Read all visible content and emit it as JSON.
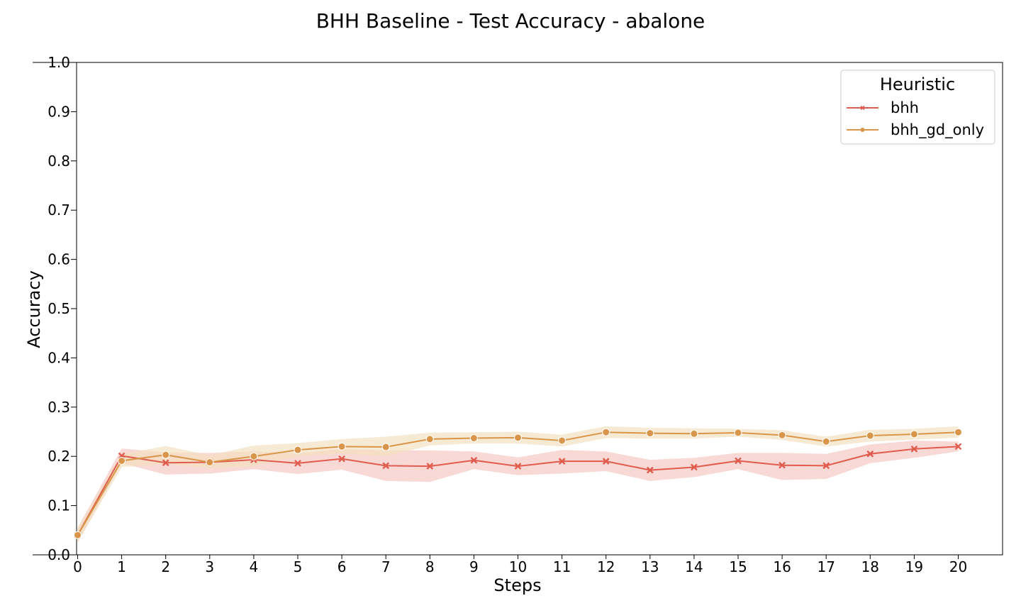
{
  "chart_data": {
    "type": "line",
    "title": "BHH Baseline - Test Accuracy - abalone",
    "xlabel": "Steps",
    "ylabel": "Accuracy",
    "xlim": [
      0,
      21
    ],
    "ylim": [
      0.0,
      1.0
    ],
    "x_ticks": [
      0,
      1,
      2,
      3,
      4,
      5,
      6,
      7,
      8,
      9,
      10,
      11,
      12,
      13,
      14,
      15,
      16,
      17,
      18,
      19,
      20
    ],
    "y_ticks": [
      "0.0",
      "0.1",
      "0.2",
      "0.3",
      "0.4",
      "0.5",
      "0.6",
      "0.7",
      "0.8",
      "0.9",
      "1.0"
    ],
    "grid": false,
    "legend": {
      "title": "Heuristic",
      "placement": "top-right"
    },
    "x": [
      0,
      1,
      2,
      3,
      4,
      5,
      6,
      7,
      8,
      9,
      10,
      11,
      12,
      13,
      14,
      15,
      16,
      17,
      18,
      19,
      20
    ],
    "series": [
      {
        "name": "bhh",
        "color": "#e05c4e",
        "band_color": "#f4c4c0",
        "marker": "x",
        "values": [
          0.04,
          0.201,
          0.187,
          0.188,
          0.193,
          0.186,
          0.195,
          0.181,
          0.18,
          0.192,
          0.18,
          0.19,
          0.19,
          0.172,
          0.178,
          0.191,
          0.182,
          0.181,
          0.205,
          0.215,
          0.22
        ],
        "lower": [
          0.025,
          0.186,
          0.163,
          0.165,
          0.174,
          0.164,
          0.173,
          0.15,
          0.148,
          0.174,
          0.162,
          0.165,
          0.17,
          0.15,
          0.158,
          0.174,
          0.152,
          0.154,
          0.186,
          0.197,
          0.21
        ],
        "upper": [
          0.055,
          0.216,
          0.208,
          0.207,
          0.21,
          0.206,
          0.215,
          0.212,
          0.212,
          0.21,
          0.198,
          0.213,
          0.21,
          0.193,
          0.197,
          0.207,
          0.207,
          0.205,
          0.224,
          0.232,
          0.23
        ]
      },
      {
        "name": "bhh_gd_only",
        "color": "#d9964a",
        "band_color": "#f3dfbd",
        "marker": "o",
        "values": [
          0.04,
          0.191,
          0.203,
          0.188,
          0.2,
          0.213,
          0.22,
          0.219,
          0.235,
          0.237,
          0.238,
          0.232,
          0.249,
          0.247,
          0.246,
          0.248,
          0.243,
          0.23,
          0.242,
          0.245,
          0.249
        ],
        "lower": [
          0.025,
          0.178,
          0.185,
          0.175,
          0.18,
          0.2,
          0.206,
          0.2,
          0.222,
          0.226,
          0.226,
          0.22,
          0.237,
          0.236,
          0.236,
          0.24,
          0.233,
          0.22,
          0.23,
          0.234,
          0.238
        ],
        "upper": [
          0.055,
          0.204,
          0.221,
          0.202,
          0.222,
          0.227,
          0.235,
          0.24,
          0.248,
          0.249,
          0.25,
          0.244,
          0.261,
          0.258,
          0.257,
          0.256,
          0.253,
          0.24,
          0.254,
          0.256,
          0.261
        ]
      }
    ]
  }
}
